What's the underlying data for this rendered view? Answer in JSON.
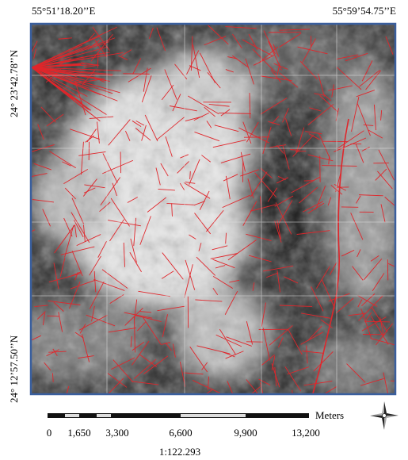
{
  "map": {
    "top_left_label": "55°51’18.20’’E",
    "top_right_label": "55°59’54.75’’E",
    "left_upper_label": "24° 23’42.78’’N",
    "left_lower_label": "24° 12’57.50’’N",
    "scale_bar": {
      "unit": "Meters",
      "labels": [
        "0",
        "1,650",
        "3,300",
        "6,600",
        "9,900",
        "13,200"
      ]
    },
    "scale_ratio": "1:122.293"
  }
}
